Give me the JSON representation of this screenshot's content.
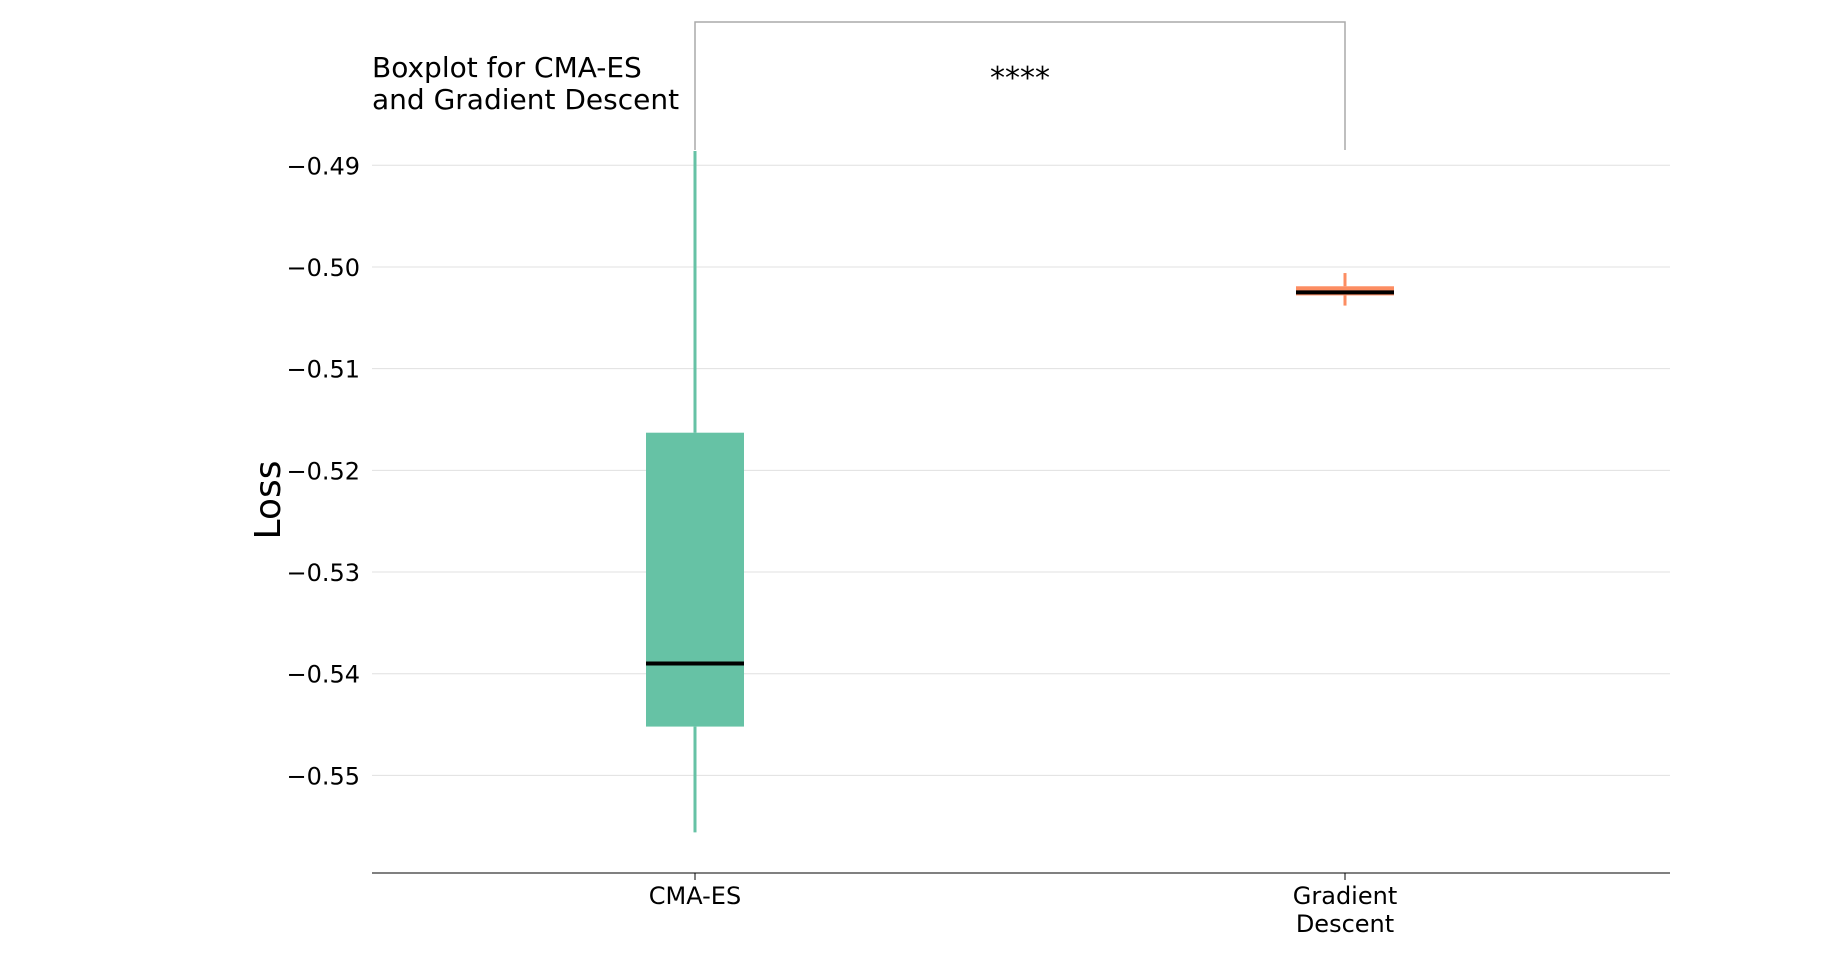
{
  "chart_data": {
    "type": "box",
    "title_lines": [
      "Boxplot for CMA-ES",
      "and Gradient Descent"
    ],
    "xlabel": "",
    "ylabel": "Loss",
    "ylim": [
      -0.5595,
      -0.4885
    ],
    "yticks": [
      -0.49,
      -0.5,
      -0.51,
      -0.52,
      -0.53,
      -0.54,
      -0.55
    ],
    "ytick_labels": [
      "−0.49",
      "−0.50",
      "−0.51",
      "−0.52",
      "−0.53",
      "−0.54",
      "−0.55"
    ],
    "grid": "horizontal",
    "categories": [
      "CMA-ES",
      "Gradient Descent"
    ],
    "category_labels": [
      [
        "CMA-ES"
      ],
      [
        "Gradient",
        "Descent"
      ]
    ],
    "boxes": [
      {
        "name": "CMA-ES",
        "whisker_low": -0.5556,
        "q1": -0.5452,
        "median": -0.539,
        "q3": -0.5163,
        "whisker_high": -0.4886,
        "color": "#66c2a5"
      },
      {
        "name": "Gradient Descent",
        "whisker_low": -0.5038,
        "q1": -0.5028,
        "median": -0.5025,
        "q3": -0.5019,
        "whisker_high": -0.5006,
        "color": "#fc8d62"
      }
    ],
    "significance": {
      "text": "****",
      "between": [
        "CMA-ES",
        "Gradient Descent"
      ]
    },
    "colors": {
      "median": "#000000",
      "grid": "#e0e0e0",
      "bracket": "#aaaaaa",
      "axis": "#000000"
    }
  }
}
